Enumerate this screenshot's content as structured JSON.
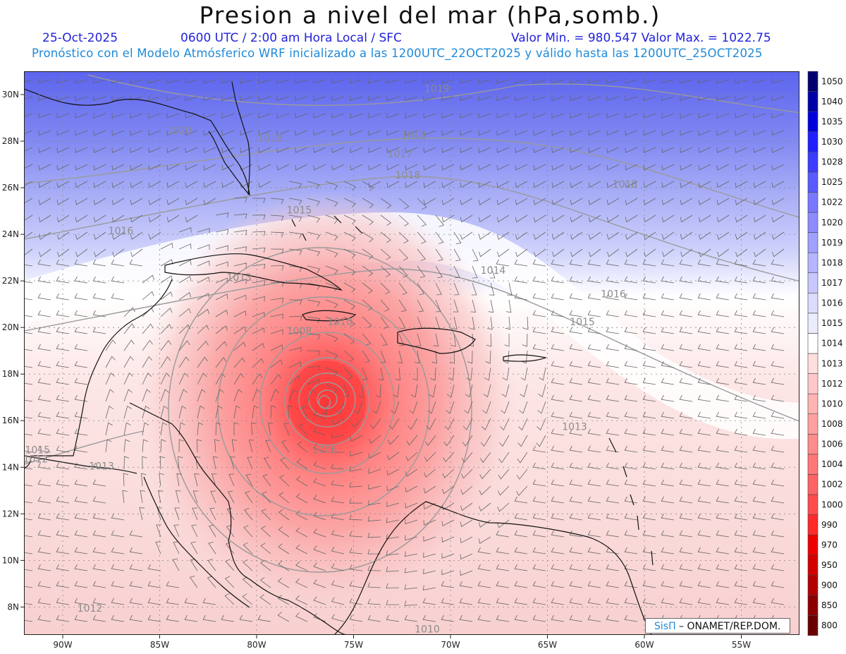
{
  "title": "Presion a nivel del mar (hPa,somb.)",
  "subtitle": {
    "date": "25-Oct-2025",
    "time": "0600 UTC / 2:00 am Hora Local / SFC",
    "min_max": "Valor Min. = 980.547  Valor Max. = 1022.75"
  },
  "model_line": "Pronóstico con el Modelo Atmósferico WRF inicializado a las 1200UTC_22OCT2025 y válido hasta las  1200UTC_25OCT2025",
  "chart_data": {
    "type": "heatmap",
    "variable": "Presion a nivel del mar",
    "units": "hPa",
    "x_range_deg": [
      -92,
      -52
    ],
    "y_range_deg": [
      6.8,
      31
    ],
    "value_min": 980.547,
    "value_max": 1022.75,
    "low_center": {
      "lon": -76.5,
      "lat": 16.8
    },
    "x_ticks": [
      "90W",
      "85W",
      "80W",
      "75W",
      "70W",
      "65W",
      "60W",
      "55W"
    ],
    "x_tick_values": [
      -90,
      -85,
      -80,
      -75,
      -70,
      -65,
      -60,
      -55
    ],
    "y_ticks": [
      "8N",
      "10N",
      "12N",
      "14N",
      "16N",
      "18N",
      "20N",
      "22N",
      "24N",
      "26N",
      "28N",
      "30N"
    ],
    "y_tick_values": [
      8,
      10,
      12,
      14,
      16,
      18,
      20,
      22,
      24,
      26,
      28,
      30
    ],
    "contour_labels": [
      {
        "text": "1019",
        "lon": -70.7,
        "lat": 30.1
      },
      {
        "text": "1020",
        "lon": -84.0,
        "lat": 28.3
      },
      {
        "text": "1018",
        "lon": -79.3,
        "lat": 28.0
      },
      {
        "text": "1018",
        "lon": -71.9,
        "lat": 28.1
      },
      {
        "text": "1017",
        "lon": -72.6,
        "lat": 27.3
      },
      {
        "text": "1018",
        "lon": -72.2,
        "lat": 26.4
      },
      {
        "text": "1018",
        "lon": -61.0,
        "lat": 26.0
      },
      {
        "text": "1015",
        "lon": -77.8,
        "lat": 24.9
      },
      {
        "text": "1016",
        "lon": -87.0,
        "lat": 24.0
      },
      {
        "text": "1014",
        "lon": -67.8,
        "lat": 22.3
      },
      {
        "text": "1013",
        "lon": -80.9,
        "lat": 22.0
      },
      {
        "text": "1016",
        "lon": -61.6,
        "lat": 21.3
      },
      {
        "text": "1010",
        "lon": -75.7,
        "lat": 20.1
      },
      {
        "text": "1015",
        "lon": -63.2,
        "lat": 20.1
      },
      {
        "text": "1008",
        "lon": -77.8,
        "lat": 19.7
      },
      {
        "text": "1013",
        "lon": -63.6,
        "lat": 15.6
      },
      {
        "text": "1006",
        "lon": -76.5,
        "lat": 14.6
      },
      {
        "text": "1015",
        "lon": -91.3,
        "lat": 14.6
      },
      {
        "text": "1012",
        "lon": -91.4,
        "lat": 14.2
      },
      {
        "text": "1013",
        "lon": -88.0,
        "lat": 13.9
      },
      {
        "text": "1012",
        "lon": -88.6,
        "lat": 7.8
      },
      {
        "text": "1010",
        "lon": -71.2,
        "lat": 6.9
      }
    ],
    "legend_levels": [
      "800",
      "850",
      "900",
      "950",
      "970",
      "990",
      "1000",
      "1002",
      "1004",
      "1006",
      "1008",
      "1010",
      "1012",
      "1013",
      "1014",
      "1015",
      "1016",
      "1017",
      "1018",
      "1019",
      "1020",
      "1022",
      "1025",
      "1028",
      "1030",
      "1035",
      "1040",
      "1050"
    ],
    "legend_colors": [
      "#6b0000",
      "#8c0000",
      "#b30000",
      "#d40000",
      "#ee0000",
      "#ff2a2a",
      "#ff4d4d",
      "#ff6464",
      "#ff7878",
      "#ff8c8c",
      "#ffa0a0",
      "#ffb4b4",
      "#ffc8c8",
      "#ffdede",
      "#ffffff",
      "#ececff",
      "#dcdcff",
      "#c8c8ff",
      "#b4b4ff",
      "#a0a0ff",
      "#8c8cff",
      "#7878ff",
      "#5a5aff",
      "#3c3cff",
      "#2020ff",
      "#0000dd",
      "#0000a8",
      "#00006e"
    ]
  },
  "credit": {
    "brand": "SisΠ",
    "text": " – ONAMET/REP.DOM."
  }
}
